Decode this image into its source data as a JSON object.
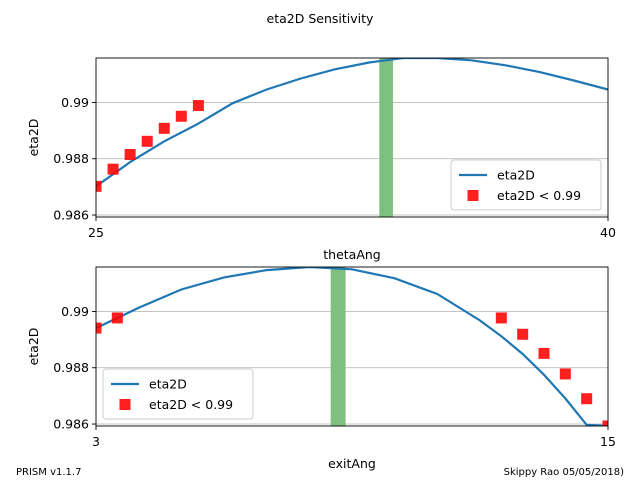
{
  "figure": {
    "title": "eta2D Sensitivity",
    "footer_left": "PRISM v1.1.7",
    "footer_right": "Skippy Rao 05/05/2018)"
  },
  "chart_data": [
    {
      "type": "line",
      "xlabel": "thetaAng",
      "ylabel": "eta2D",
      "xlim": [
        25,
        40
      ],
      "ylim": [
        0.98593,
        0.99158
      ],
      "xticks": [
        "25",
        "40"
      ],
      "yticks": [
        "0.986",
        "0.988",
        "0.99"
      ],
      "ytick_values": [
        0.986,
        0.988,
        0.99
      ],
      "grid": "horizontal",
      "legend_placement": "lower-right",
      "band": {
        "x_min": 33.3,
        "x_max": 33.7,
        "color": "#7fbf7f"
      },
      "series": [
        {
          "name": "eta2D",
          "color": "#1f77b4",
          "x": [
            25,
            26,
            27,
            28,
            29,
            30,
            31,
            32,
            33,
            34,
            35,
            36,
            37,
            38,
            39,
            40
          ],
          "y": [
            0.98702,
            0.98788,
            0.98862,
            0.98925,
            0.98997,
            0.99046,
            0.99085,
            0.99118,
            0.99142,
            0.99158,
            0.99158,
            0.9915,
            0.99132,
            0.99108,
            0.99078,
            0.99046
          ]
        },
        {
          "name": "eta2D < 0.99",
          "color": "#ff0000",
          "marker": "square",
          "x": [
            25,
            25.5,
            26,
            26.5,
            27,
            27.5,
            28
          ],
          "y": [
            0.98702,
            0.98763,
            0.98815,
            0.98862,
            0.98908,
            0.98951,
            0.98989
          ]
        }
      ]
    },
    {
      "type": "line",
      "xlabel": "exitAng",
      "ylabel": "eta2D",
      "xlim": [
        3,
        15
      ],
      "ylim": [
        0.98593,
        0.99158
      ],
      "xticks": [
        "3",
        "15"
      ],
      "yticks": [
        "0.986",
        "0.988",
        "0.99"
      ],
      "ytick_values": [
        0.986,
        0.988,
        0.99
      ],
      "grid": "horizontal",
      "legend_placement": "lower-left",
      "band": {
        "x_min": 8.5,
        "x_max": 8.85,
        "color": "#7fbf7f"
      },
      "series": [
        {
          "name": "eta2D",
          "color": "#1f77b4",
          "x": [
            3,
            4,
            5,
            6,
            7,
            8,
            9,
            10,
            11,
            12,
            12.5,
            13,
            13.5,
            14,
            14.5,
            15
          ],
          "y": [
            0.98941,
            0.99013,
            0.99078,
            0.99121,
            0.99147,
            0.99158,
            0.9915,
            0.99118,
            0.99062,
            0.98968,
            0.98912,
            0.98849,
            0.98775,
            0.98691,
            0.98597,
            0.98593
          ]
        },
        {
          "name": "eta2D < 0.99",
          "color": "#ff0000",
          "marker": "square",
          "x": [
            3,
            3.5,
            12.5,
            13,
            13.5,
            14,
            14.5,
            15
          ],
          "y": [
            0.98941,
            0.98977,
            0.98977,
            0.98919,
            0.98851,
            0.98778,
            0.9869,
            0.98593
          ]
        }
      ]
    }
  ]
}
